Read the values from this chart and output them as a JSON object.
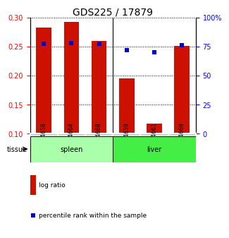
{
  "title": "GDS225 / 17879",
  "samples": [
    "GSM4658",
    "GSM4664",
    "GSM4668",
    "GSM4659",
    "GSM4661",
    "GSM4669"
  ],
  "log_ratio": [
    0.283,
    0.292,
    0.26,
    0.195,
    0.117,
    0.251
  ],
  "percentile_rank": [
    77,
    78,
    77,
    72,
    70,
    76
  ],
  "bar_color": "#cc1100",
  "dot_color": "#0000cc",
  "ylim_left": [
    0.1,
    0.3
  ],
  "ylim_right": [
    0,
    100
  ],
  "yticks_left": [
    0.1,
    0.15,
    0.2,
    0.25,
    0.3
  ],
  "yticks_right": [
    0,
    25,
    50,
    75,
    100
  ],
  "ytick_labels_right": [
    "0",
    "25",
    "50",
    "75",
    "100%"
  ],
  "bar_width": 0.55,
  "tissue_groups": [
    {
      "label": "spleen",
      "start": 0,
      "end": 3,
      "color": "#aaffaa"
    },
    {
      "label": "liver",
      "start": 3,
      "end": 6,
      "color": "#44ee44"
    }
  ],
  "tissue_label": "tissue",
  "legend_log_ratio": "log ratio",
  "legend_percentile": "percentile rank within the sample",
  "sample_box_color": "#cccccc",
  "spleen_color": "#aaffaa",
  "liver_color": "#44ee44"
}
